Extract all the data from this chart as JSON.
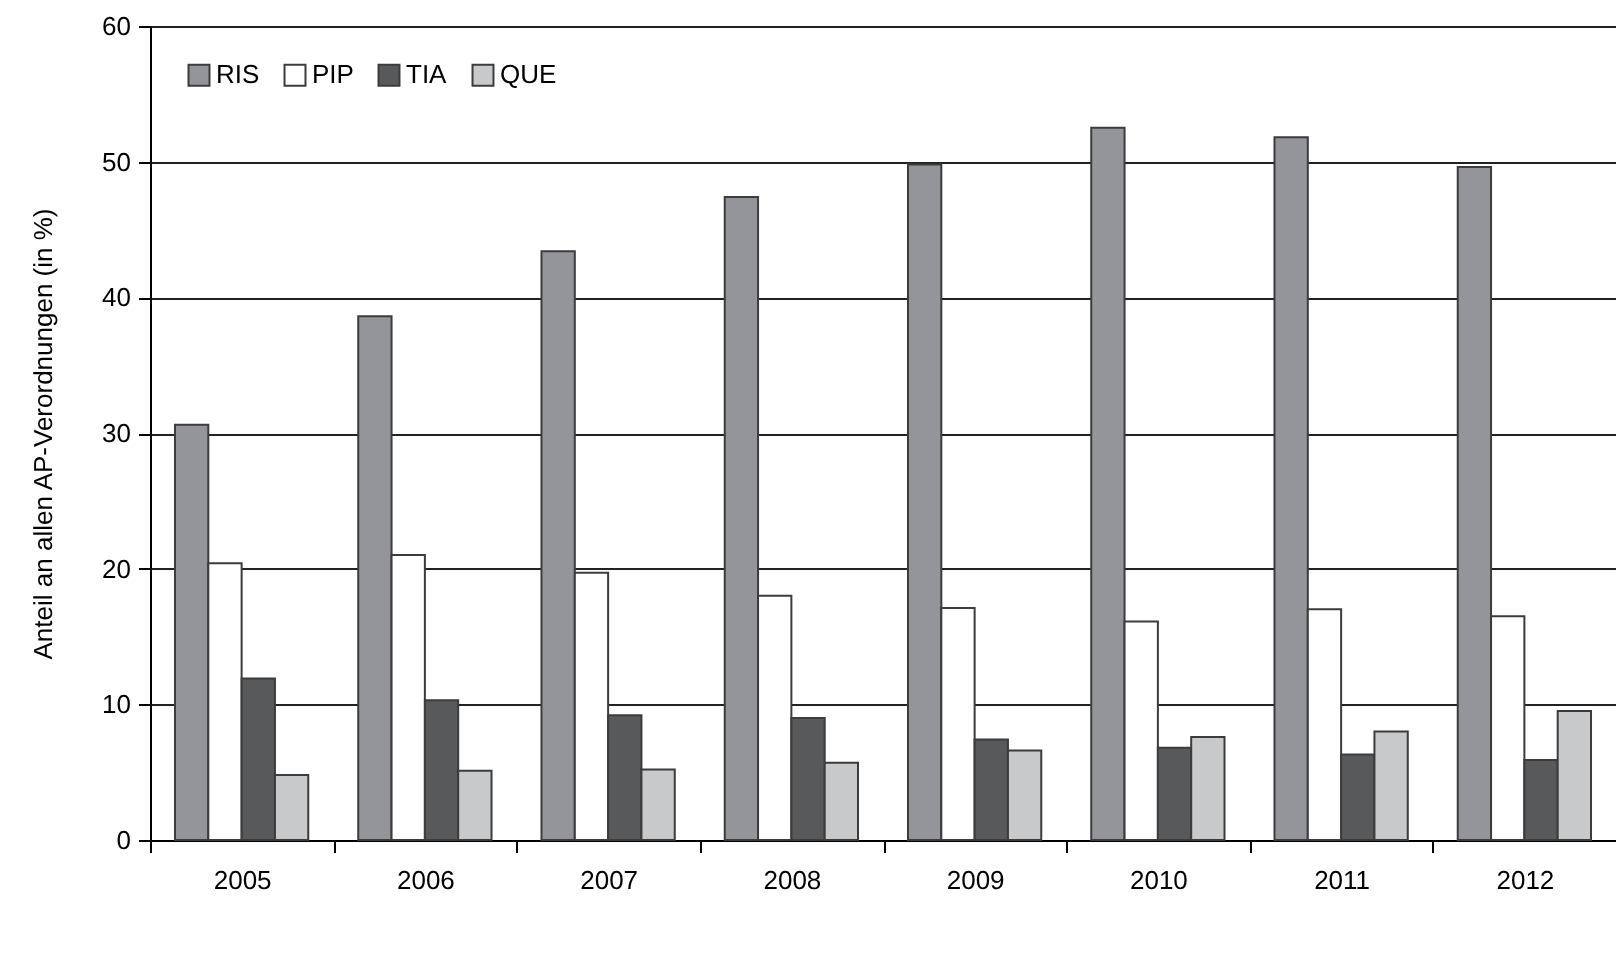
{
  "chart_data": {
    "type": "bar",
    "ylabel": "Anteil an allen AP-Verordnungen (in %)",
    "categories": [
      "2005",
      "2006",
      "2007",
      "2008",
      "2009",
      "2010",
      "2011",
      "2012"
    ],
    "series": [
      {
        "name": "RIS",
        "color": "#939598",
        "values": [
          30.6,
          38.6,
          43.4,
          47.4,
          49.8,
          52.5,
          51.8,
          49.6
        ]
      },
      {
        "name": "PIP",
        "color": "#ffffff",
        "values": [
          20.4,
          21.0,
          19.7,
          18.0,
          17.1,
          16.1,
          17.0,
          16.5
        ]
      },
      {
        "name": "TIA",
        "color": "#58595b",
        "values": [
          11.9,
          10.3,
          9.2,
          9.0,
          7.4,
          6.8,
          6.3,
          5.9
        ]
      },
      {
        "name": "QUE",
        "color": "#c8c9cb",
        "values": [
          4.8,
          5.1,
          5.2,
          5.7,
          6.6,
          7.6,
          8.0,
          9.5
        ]
      }
    ],
    "ylim": [
      0,
      60
    ],
    "yticks": [
      0,
      10,
      20,
      30,
      40,
      50,
      60
    ],
    "grid": "y",
    "legend": "top left"
  }
}
